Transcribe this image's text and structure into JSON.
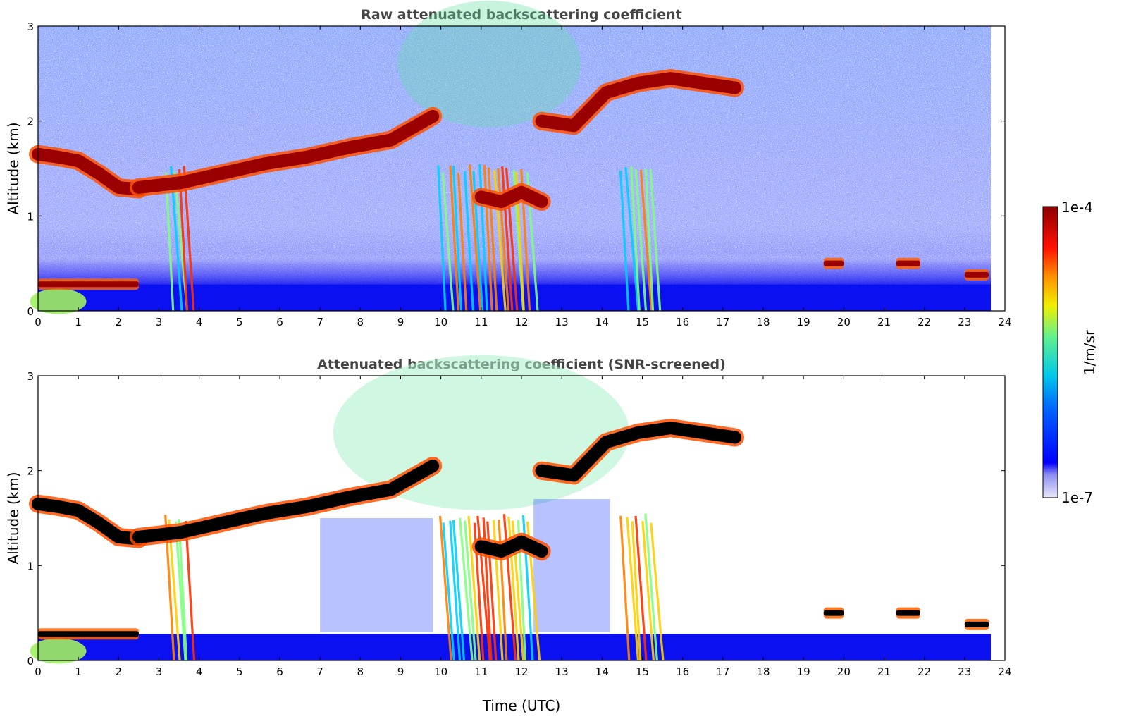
{
  "chart_data": [
    {
      "type": "heatmap",
      "title": "Raw attenuated backscattering coefficient",
      "xlabel": "",
      "ylabel": "Altitude (km)",
      "xlim": [
        0,
        24
      ],
      "ylim": [
        0,
        3
      ],
      "xticks": [
        "0",
        "1",
        "2",
        "3",
        "4",
        "5",
        "6",
        "7",
        "8",
        "9",
        "10",
        "11",
        "12",
        "13",
        "14",
        "15",
        "16",
        "17",
        "18",
        "19",
        "20",
        "21",
        "22",
        "23",
        "24"
      ],
      "yticks": [
        "0",
        "1",
        "2",
        "3"
      ],
      "cloud_layers": [
        {
          "start": 0.0,
          "end": 2.5,
          "alt": [
            1.65,
            1.62,
            1.58,
            1.45,
            1.3,
            1.28
          ]
        },
        {
          "start": 2.5,
          "end": 9.8,
          "alt": [
            1.3,
            1.35,
            1.45,
            1.55,
            1.62,
            1.72,
            1.8,
            2.05
          ]
        },
        {
          "start": 11.0,
          "end": 12.5,
          "alt": [
            1.2,
            1.15,
            1.25,
            1.15
          ]
        },
        {
          "start": 12.5,
          "end": 17.3,
          "alt": [
            2.0,
            1.95,
            2.3,
            2.4,
            2.45,
            2.4,
            2.35
          ]
        }
      ],
      "low_layers": [
        {
          "start": 0.0,
          "end": 2.5,
          "alt": 0.28
        },
        {
          "start": 19.5,
          "end": 20.0,
          "alt": 0.5
        },
        {
          "start": 21.3,
          "end": 21.9,
          "alt": 0.5
        },
        {
          "start": 23.0,
          "end": 23.6,
          "alt": 0.38
        }
      ],
      "precipitation": [
        {
          "start": 9.9,
          "end": 12.2
        },
        {
          "start": 14.4,
          "end": 15.3
        },
        {
          "start": 3.1,
          "end": 3.7
        }
      ]
    },
    {
      "type": "heatmap",
      "title": "Attenuated backscattering coefficient (SNR-screened)",
      "xlabel": "Time (UTC)",
      "ylabel": "Altitude (km)",
      "xlim": [
        0,
        24
      ],
      "ylim": [
        0,
        3
      ],
      "xticks": [
        "0",
        "1",
        "2",
        "3",
        "4",
        "5",
        "6",
        "7",
        "8",
        "9",
        "10",
        "11",
        "12",
        "13",
        "14",
        "15",
        "16",
        "17",
        "18",
        "19",
        "20",
        "21",
        "22",
        "23",
        "24"
      ],
      "yticks": [
        "0",
        "1",
        "2",
        "3"
      ]
    }
  ],
  "colorbar": {
    "label": "1/m/sr",
    "min_label": "1e-7",
    "max_label": "1e-4",
    "colors": [
      "#e6e6fa",
      "#b0b0f0",
      "#0000ff",
      "#0080ff",
      "#00e0e0",
      "#80ff80",
      "#ffff00",
      "#ff8000",
      "#ff0000",
      "#8b0000"
    ]
  }
}
